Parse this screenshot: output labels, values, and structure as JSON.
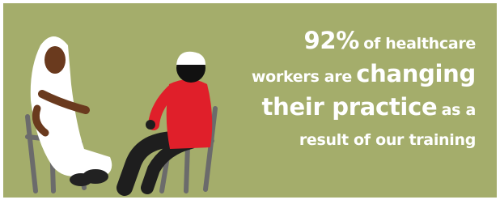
{
  "headline": {
    "statistic": "92%",
    "line1_text": "of healthcare",
    "line2_text": "workers are",
    "line2_emphasis": "changing",
    "line3_emphasis": "their practice",
    "line3_text": "as a",
    "line4_text": "result of our training"
  }
}
